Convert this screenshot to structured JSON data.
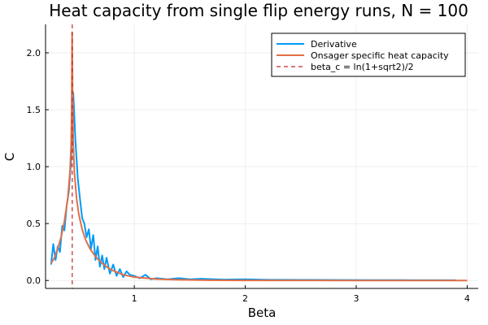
{
  "chart_data": {
    "type": "line",
    "title": "Heat capacity from single flip energy runs, N = 100",
    "xlabel": "Beta",
    "ylabel": "C",
    "xlim": [
      0.2,
      4.1
    ],
    "ylim": [
      -0.07,
      2.25
    ],
    "xticks": [
      1,
      2,
      3,
      4
    ],
    "xtick_labels": [
      "1",
      "2",
      "3",
      "4"
    ],
    "yticks": [
      0.0,
      0.5,
      1.0,
      1.5,
      2.0
    ],
    "ytick_labels": [
      "0.0",
      "0.5",
      "1.0",
      "1.5",
      "2.0"
    ],
    "grid": true,
    "legend_position": "top-right",
    "series": [
      {
        "name": "Derivative",
        "color": "#009af9",
        "style": "solid",
        "x": [
          0.25,
          0.27,
          0.29,
          0.31,
          0.33,
          0.35,
          0.37,
          0.39,
          0.41,
          0.43,
          0.45,
          0.47,
          0.49,
          0.51,
          0.53,
          0.55,
          0.57,
          0.59,
          0.61,
          0.63,
          0.65,
          0.67,
          0.69,
          0.71,
          0.73,
          0.75,
          0.78,
          0.81,
          0.84,
          0.87,
          0.9,
          0.93,
          0.96,
          1.0,
          1.05,
          1.1,
          1.15,
          1.2,
          1.3,
          1.4,
          1.5,
          1.6,
          1.8,
          2.0,
          2.2,
          2.5,
          2.8,
          3.1,
          3.4,
          3.7,
          3.9
        ],
        "y": [
          0.14,
          0.32,
          0.18,
          0.3,
          0.25,
          0.48,
          0.44,
          0.65,
          0.78,
          1.05,
          1.65,
          1.22,
          0.9,
          0.72,
          0.55,
          0.5,
          0.38,
          0.45,
          0.28,
          0.4,
          0.18,
          0.3,
          0.12,
          0.22,
          0.1,
          0.2,
          0.06,
          0.14,
          0.04,
          0.1,
          0.03,
          0.08,
          0.05,
          0.04,
          0.02,
          0.05,
          0.01,
          0.02,
          0.01,
          0.02,
          0.01,
          0.015,
          0.008,
          0.01,
          0.006,
          0.005,
          0.004,
          0.003,
          0.003,
          0.002,
          0.002
        ]
      },
      {
        "name": "Onsager specific heat capacity",
        "color": "#e26f46",
        "style": "solid",
        "x": [
          0.25,
          0.28,
          0.31,
          0.34,
          0.37,
          0.4,
          0.42,
          0.43,
          0.435,
          0.44,
          0.445,
          0.45,
          0.46,
          0.48,
          0.5,
          0.53,
          0.56,
          0.6,
          0.65,
          0.7,
          0.75,
          0.8,
          0.9,
          1.0,
          1.2,
          1.4,
          1.6,
          2.0,
          2.5,
          3.0,
          3.5,
          4.0
        ],
        "y": [
          0.15,
          0.2,
          0.28,
          0.38,
          0.52,
          0.72,
          0.95,
          1.18,
          1.5,
          2.18,
          1.55,
          1.2,
          0.95,
          0.72,
          0.58,
          0.45,
          0.36,
          0.28,
          0.21,
          0.16,
          0.12,
          0.09,
          0.05,
          0.03,
          0.012,
          0.006,
          0.003,
          0.001,
          0.0005,
          0.0002,
          0.0001,
          0.0001
        ]
      },
      {
        "name": "beta_c = ln(1+sqrt2)/2",
        "color": "#c0282d",
        "style": "dashed",
        "vline_x": 0.4407
      }
    ]
  }
}
